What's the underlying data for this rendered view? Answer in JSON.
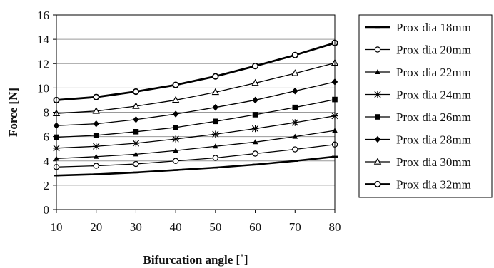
{
  "chart_data": {
    "type": "line",
    "xlabel": "Bifurcation angle [˚]",
    "ylabel": "Force [N]",
    "xlim": [
      10,
      80
    ],
    "ylim": [
      0,
      16
    ],
    "x_ticks": [
      10,
      20,
      30,
      40,
      50,
      60,
      70,
      80
    ],
    "y_ticks": [
      0,
      2,
      4,
      6,
      8,
      10,
      12,
      14,
      16
    ],
    "grid": "horizontal",
    "legend_position": "right",
    "x": [
      10,
      20,
      30,
      40,
      50,
      60,
      70,
      80
    ],
    "series": [
      {
        "name": "Prox dia 18mm",
        "marker": "dash",
        "values": [
          2.8,
          2.9,
          3.05,
          3.25,
          3.45,
          3.7,
          4.0,
          4.35
        ]
      },
      {
        "name": "Prox dia 20mm",
        "marker": "circle-open",
        "values": [
          3.5,
          3.6,
          3.75,
          4.0,
          4.25,
          4.6,
          4.95,
          5.35
        ]
      },
      {
        "name": "Prox dia 22mm",
        "marker": "triangle-filled",
        "values": [
          4.2,
          4.35,
          4.55,
          4.85,
          5.2,
          5.55,
          6.0,
          6.5
        ]
      },
      {
        "name": "Prox dia 24mm",
        "marker": "star",
        "values": [
          5.05,
          5.2,
          5.45,
          5.8,
          6.2,
          6.65,
          7.15,
          7.7
        ]
      },
      {
        "name": "Prox dia 26mm",
        "marker": "square-filled",
        "values": [
          5.95,
          6.1,
          6.4,
          6.75,
          7.25,
          7.8,
          8.4,
          9.05
        ]
      },
      {
        "name": "Prox dia 28mm",
        "marker": "diamond-filled",
        "values": [
          6.9,
          7.05,
          7.4,
          7.85,
          8.4,
          9.0,
          9.75,
          10.5
        ]
      },
      {
        "name": "Prox dia 30mm",
        "marker": "triangle-open",
        "values": [
          7.9,
          8.1,
          8.5,
          9.0,
          9.65,
          10.4,
          11.2,
          12.05
        ]
      },
      {
        "name": "Prox dia 32mm",
        "marker": "circle-open-bold",
        "values": [
          9.0,
          9.25,
          9.7,
          10.25,
          10.95,
          11.8,
          12.7,
          13.7
        ]
      }
    ]
  }
}
